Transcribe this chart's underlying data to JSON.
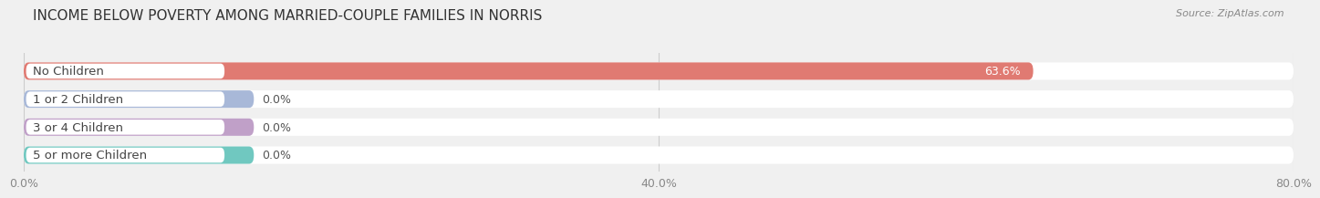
{
  "title": "INCOME BELOW POVERTY AMONG MARRIED-COUPLE FAMILIES IN NORRIS",
  "source": "Source: ZipAtlas.com",
  "categories": [
    "No Children",
    "1 or 2 Children",
    "3 or 4 Children",
    "5 or more Children"
  ],
  "values": [
    63.6,
    0.0,
    0.0,
    0.0
  ],
  "bar_colors": [
    "#e07a72",
    "#a8b8d8",
    "#c0a0c8",
    "#70c8c0"
  ],
  "background_color": "#f0f0f0",
  "bar_bg_color": "#e8e8e8",
  "xlim": [
    0,
    80
  ],
  "xticks": [
    0,
    40,
    80
  ],
  "xtick_labels": [
    "0.0%",
    "40.0%",
    "80.0%"
  ],
  "value_labels": [
    "63.6%",
    "0.0%",
    "0.0%",
    "0.0%"
  ],
  "title_fontsize": 11,
  "tick_fontsize": 9,
  "label_fontsize": 9.5,
  "value_fontsize": 9
}
